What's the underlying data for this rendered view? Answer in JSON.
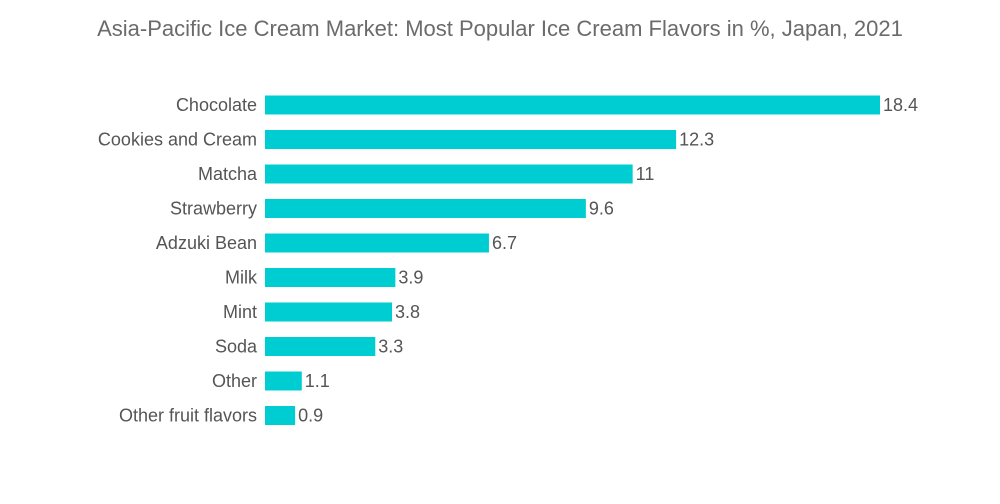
{
  "chart_data": {
    "type": "bar",
    "orientation": "horizontal",
    "title": "Asia-Pacific Ice Cream Market: Most Popular Ice Cream Flavors in %, Japan, 2021",
    "xlabel": "",
    "ylabel": "",
    "categories": [
      "Chocolate",
      "Cookies and Cream",
      "Matcha",
      "Strawberry",
      "Adzuki Bean",
      "Milk",
      "Mint",
      "Soda",
      "Other",
      "Other fruit flavors"
    ],
    "values": [
      18.4,
      12.3,
      11,
      9.6,
      6.7,
      3.9,
      3.8,
      3.3,
      1.1,
      0.9
    ],
    "value_labels": [
      "18.4",
      "12.3",
      "11",
      "9.6",
      "6.7",
      "3.9",
      "3.8",
      "3.3",
      "1.1",
      "0.9"
    ],
    "xlim": [
      0,
      18.4
    ],
    "grid": false,
    "legend": "none",
    "bar_color": "#00cdd1"
  }
}
